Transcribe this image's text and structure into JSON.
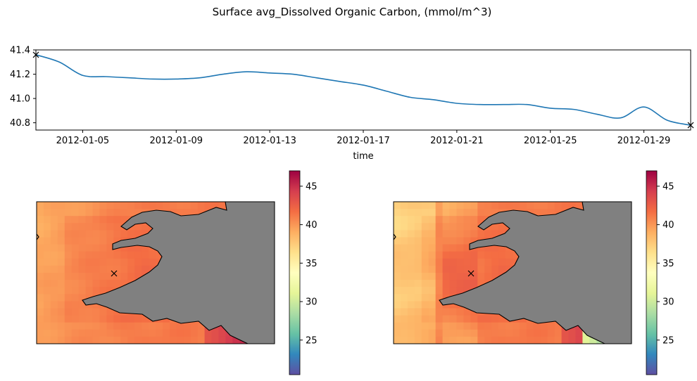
{
  "title": "Surface avg_Dissolved Organic Carbon, (mmol/m^3)",
  "colors": {
    "line": "#1f77b4",
    "land": "#808080",
    "coast": "#000000",
    "colormap": [
      "#5e4fa2",
      "#3288bd",
      "#66c2a5",
      "#abdda4",
      "#e6f598",
      "#ffffbf",
      "#fee08b",
      "#fdae61",
      "#f46d43",
      "#d53e4f",
      "#9e0142"
    ]
  },
  "chart_data": [
    {
      "type": "line",
      "xlabel": "time",
      "ylabel": "",
      "xlim": [
        "2012-01-03",
        "2012-01-31"
      ],
      "ylim": [
        40.74,
        41.4
      ],
      "x_ticks": [
        "2012-01-05",
        "2012-01-09",
        "2012-01-13",
        "2012-01-17",
        "2012-01-21",
        "2012-01-25",
        "2012-01-29"
      ],
      "y_ticks": [
        "40.8",
        "41.0",
        "41.2",
        "41.4"
      ],
      "grid": false,
      "series": [
        {
          "x": [
            "2012-01-03",
            "2012-01-04",
            "2012-01-05",
            "2012-01-06",
            "2012-01-07",
            "2012-01-08",
            "2012-01-09",
            "2012-01-10",
            "2012-01-11",
            "2012-01-12",
            "2012-01-13",
            "2012-01-14",
            "2012-01-15",
            "2012-01-16",
            "2012-01-17",
            "2012-01-18",
            "2012-01-19",
            "2012-01-20",
            "2012-01-21",
            "2012-01-22",
            "2012-01-23",
            "2012-01-24",
            "2012-01-25",
            "2012-01-26",
            "2012-01-27",
            "2012-01-28",
            "2012-01-29",
            "2012-01-30",
            "2012-01-31"
          ],
          "y": [
            41.36,
            41.3,
            41.19,
            41.18,
            41.17,
            41.16,
            41.16,
            41.17,
            41.2,
            41.22,
            41.21,
            41.2,
            41.17,
            41.14,
            41.11,
            41.06,
            41.01,
            40.99,
            40.96,
            40.95,
            40.95,
            40.95,
            40.92,
            40.91,
            40.87,
            40.84,
            40.93,
            40.82,
            40.78
          ]
        }
      ],
      "markers": [
        {
          "x": "2012-01-03",
          "y": 41.36,
          "symbol": "x"
        },
        {
          "x": "2012-01-31",
          "y": 40.78,
          "symbol": "x"
        }
      ]
    },
    {
      "type": "heatmap",
      "title": "",
      "colorbar": {
        "ticks": [
          "25",
          "30",
          "35",
          "40",
          "45"
        ],
        "vmin": 20.5,
        "vmax": 47
      },
      "marker": {
        "symbol": "x",
        "description": "sample location"
      }
    },
    {
      "type": "heatmap",
      "title": "",
      "colorbar": {
        "ticks": [
          "25",
          "30",
          "35",
          "40",
          "45"
        ],
        "vmin": 20.5,
        "vmax": 47
      },
      "marker": {
        "symbol": "x",
        "description": "sample location"
      }
    }
  ]
}
